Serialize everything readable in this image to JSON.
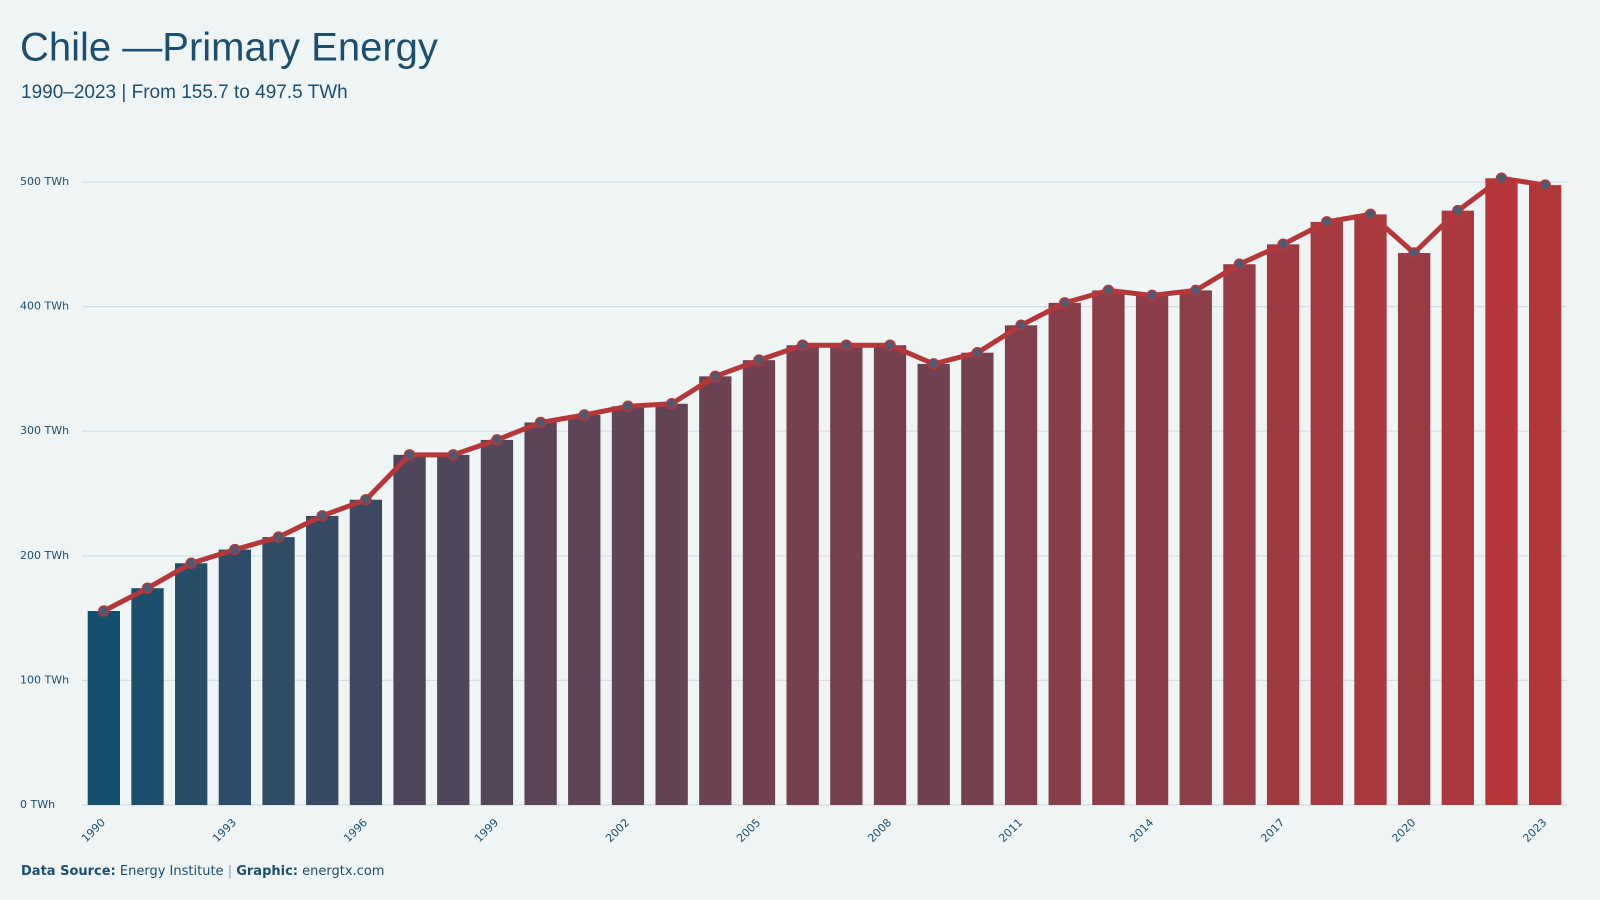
{
  "chart_data": {
    "type": "bar",
    "title": "Chile —Primary Energy",
    "subtitle": "1990–2023 | From 155.7 to 497.5 TWh",
    "categories": [
      "1990",
      null,
      null,
      "1993",
      null,
      null,
      "1996",
      null,
      null,
      "1999",
      null,
      null,
      "2002",
      null,
      null,
      "2005",
      null,
      null,
      "2008",
      null,
      null,
      "2011",
      null,
      null,
      "2014",
      null,
      null,
      "2017",
      null,
      null,
      "2020",
      null,
      null,
      "2023"
    ],
    "values": [
      155.7,
      174,
      194,
      205,
      215,
      232,
      245,
      281,
      281,
      293,
      307,
      313,
      320,
      322,
      344,
      357,
      369,
      369,
      369,
      354,
      363,
      385,
      403,
      413,
      409,
      413,
      434,
      450,
      468,
      474,
      443,
      477,
      503,
      497.5
    ],
    "colors": [
      "#154f6e",
      "#b5373a"
    ],
    "line_color": "#b5373a",
    "marker_color": "#4d5a70",
    "ylim": [
      0,
      500
    ],
    "yticks": [
      {
        "value": 0,
        "label": "0 TWh"
      },
      {
        "value": 100,
        "label": "100 TWh"
      },
      {
        "value": 200,
        "label": "200 TWh"
      },
      {
        "value": 300,
        "label": "300 TWh"
      },
      {
        "value": 400,
        "label": "400 TWh"
      },
      {
        "value": 500,
        "label": "500 TWh"
      }
    ],
    "grid": true
  },
  "footer": {
    "source_label": "Data Source:",
    "source": "Energy Institute",
    "separator": "|",
    "graphic_label": "Graphic:",
    "graphic": "energtx.com"
  }
}
